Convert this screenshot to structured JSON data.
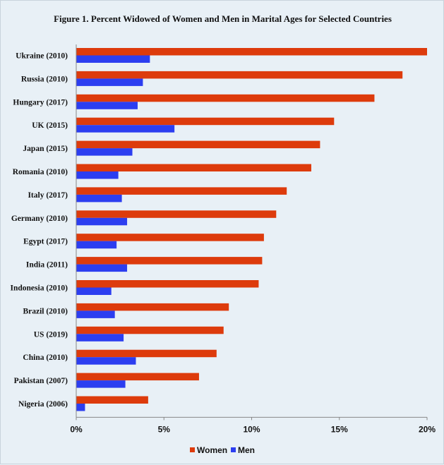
{
  "chart_data": {
    "type": "bar",
    "orientation": "horizontal",
    "title": "Figure 1. Percent Widowed of Women and Men in Marital Ages for Selected Countries",
    "categories": [
      "Ukraine (2010)",
      "Russia (2010)",
      "Hungary (2017)",
      "UK (2015)",
      "Japan (2015)",
      "Romania (2010)",
      "Italy (2017)",
      "Germany (2010)",
      "Egypt (2017)",
      "India (2011)",
      "Indonesia (2010)",
      "Brazil (2010)",
      "US (2019)",
      "China (2010)",
      "Pakistan (2007)",
      "Nigeria (2006)"
    ],
    "series": [
      {
        "name": "Women",
        "color": "#dd3b0c",
        "values": [
          20.0,
          18.6,
          17.0,
          14.7,
          13.9,
          13.4,
          12.0,
          11.4,
          10.7,
          10.6,
          10.4,
          8.7,
          8.4,
          8.0,
          7.0,
          4.1
        ]
      },
      {
        "name": "Men",
        "color": "#2c3ef0",
        "values": [
          4.2,
          3.8,
          3.5,
          5.6,
          3.2,
          2.4,
          2.6,
          2.9,
          2.3,
          2.9,
          2.0,
          2.2,
          2.7,
          3.4,
          2.8,
          0.5
        ]
      }
    ],
    "xlim": [
      0,
      20
    ],
    "xticks": [
      "0%",
      "5%",
      "10%",
      "15%",
      "20%"
    ],
    "xtick_values": [
      0,
      5,
      10,
      15,
      20
    ],
    "grid": false,
    "legend_position": "bottom-center"
  }
}
